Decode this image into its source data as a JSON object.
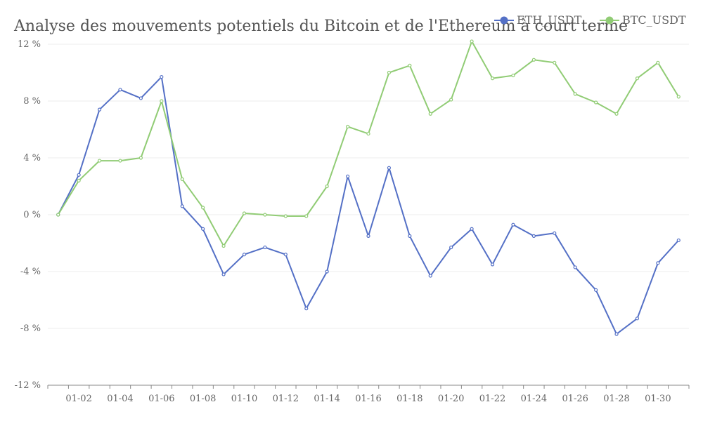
{
  "chart_data": {
    "type": "line",
    "title": "Analyse des mouvements potentiels du Bitcoin et de l'Ethereum à court terme",
    "xlabel": "",
    "ylabel": "",
    "ylim": [
      -12,
      12
    ],
    "yticks": [
      -12,
      -8,
      -4,
      0,
      4,
      8,
      12
    ],
    "y_tick_labels": [
      "-12 %",
      "-8 %",
      "-4 %",
      "0 %",
      "4 %",
      "8 %",
      "12 %"
    ],
    "x": [
      "01-01",
      "01-02",
      "01-03",
      "01-04",
      "01-05",
      "01-06",
      "01-07",
      "01-08",
      "01-09",
      "01-10",
      "01-11",
      "01-12",
      "01-13",
      "01-14",
      "01-15",
      "01-16",
      "01-17",
      "01-18",
      "01-19",
      "01-20",
      "01-21",
      "01-22",
      "01-23",
      "01-24",
      "01-25",
      "01-26",
      "01-27",
      "01-28",
      "01-29",
      "01-30",
      "01-31"
    ],
    "x_tick_labels": [
      "01-02",
      "01-04",
      "01-06",
      "01-08",
      "01-10",
      "01-12",
      "01-14",
      "01-16",
      "01-18",
      "01-20",
      "01-22",
      "01-24",
      "01-26",
      "01-28",
      "01-30"
    ],
    "grid": true,
    "legend_position": "top-right",
    "series": [
      {
        "name": "ETH_USDT",
        "color": "#5470c6",
        "values": [
          0,
          2.8,
          7.4,
          8.8,
          8.2,
          9.7,
          0.6,
          -1.0,
          -4.2,
          -2.8,
          -2.3,
          -2.8,
          -6.6,
          -4.0,
          2.7,
          -1.5,
          3.3,
          -1.5,
          -4.3,
          -2.3,
          -1.0,
          -3.5,
          -0.7,
          -1.5,
          -1.3,
          -3.7,
          -5.3,
          -8.4,
          -7.3,
          -3.4,
          -1.8
        ]
      },
      {
        "name": "BTC_USDT",
        "color": "#91cc75",
        "values": [
          0,
          2.4,
          3.8,
          3.8,
          4.0,
          8.0,
          2.5,
          0.5,
          -2.2,
          0.1,
          0.0,
          -0.1,
          -0.1,
          2.0,
          6.2,
          5.7,
          10.0,
          10.5,
          7.1,
          8.1,
          12.2,
          9.6,
          9.8,
          10.9,
          10.7,
          8.5,
          7.9,
          7.1,
          9.6,
          10.7,
          8.3
        ]
      }
    ]
  }
}
